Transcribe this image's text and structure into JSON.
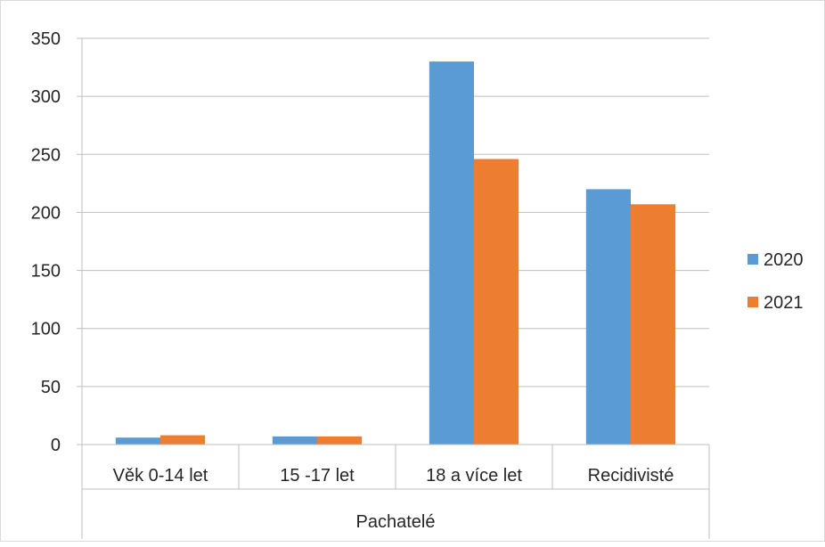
{
  "chart_data": {
    "type": "bar",
    "title": "",
    "xlabel": "Pachatelé",
    "ylabel": "",
    "categories": [
      "Věk 0-14 let",
      "15 -17 let",
      "18 a více let",
      "Recidivisté"
    ],
    "series": [
      {
        "name": "2020",
        "values": [
          6,
          7,
          330,
          220
        ]
      },
      {
        "name": "2021",
        "values": [
          8,
          7,
          246,
          207
        ]
      }
    ],
    "ylim": [
      0,
      350
    ],
    "yticks": [
      0,
      50,
      100,
      150,
      200,
      250,
      300,
      350
    ],
    "grid": true,
    "legend_position": "right",
    "colors": {
      "2020": "#5b9bd5",
      "2021": "#ed7d31",
      "gridline": "#bfbfbf",
      "frame": "#d9d9d9"
    }
  }
}
